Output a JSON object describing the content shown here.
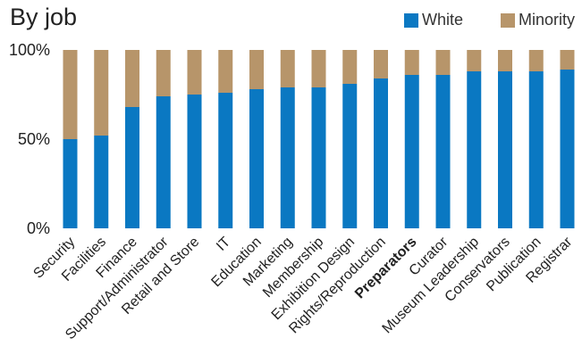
{
  "chart_data": {
    "type": "bar",
    "stacked": true,
    "title": "By job",
    "categories": [
      "Security",
      "Facilities",
      "Finance",
      "Support/Administrator",
      "Retail and Store",
      "IT",
      "Education",
      "Marketing",
      "Membership",
      "Exhibition Design",
      "Rights/Reproduction",
      "Preparators",
      "Curator",
      "Museum Leadership",
      "Conservators",
      "Publication",
      "Registrar"
    ],
    "highlighted_category": "Preparators",
    "series": [
      {
        "name": "White",
        "color": "#0a78c2",
        "values": [
          50,
          52,
          68,
          74,
          75,
          76,
          78,
          79,
          79,
          81,
          84,
          86,
          86,
          88,
          88,
          88,
          89
        ]
      },
      {
        "name": "Minority",
        "color": "#b7956a",
        "values": [
          50,
          48,
          32,
          26,
          25,
          24,
          22,
          21,
          21,
          19,
          16,
          14,
          14,
          12,
          12,
          12,
          11
        ]
      }
    ],
    "yticks": [
      "0%",
      "50%",
      "100%"
    ],
    "ylim": [
      0,
      100
    ],
    "legend_position": "top-right",
    "grid": false
  }
}
